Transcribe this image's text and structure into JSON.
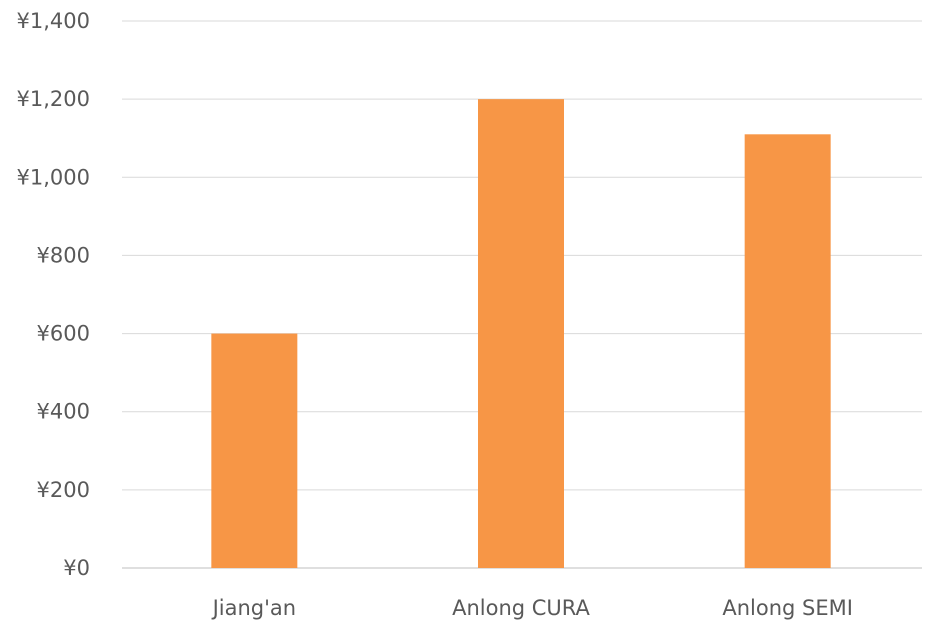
{
  "chart_data": {
    "type": "bar",
    "title": "",
    "xlabel": "",
    "ylabel": "",
    "categories": [
      "Jiang'an",
      "Anlong CURA",
      "Anlong SEMI"
    ],
    "series": [
      {
        "values": [
          600,
          1200,
          1110
        ],
        "color": "#F79646"
      }
    ],
    "ylim": [
      0,
      1400
    ],
    "y_ticks": [
      0,
      200,
      400,
      600,
      800,
      1000,
      1200,
      1400
    ],
    "y_tick_labels": [
      "¥0",
      "¥200",
      "¥400",
      "¥600",
      "¥800",
      "¥1,000",
      "¥1,200",
      "¥1,400"
    ],
    "grid": true,
    "legend": "none"
  }
}
